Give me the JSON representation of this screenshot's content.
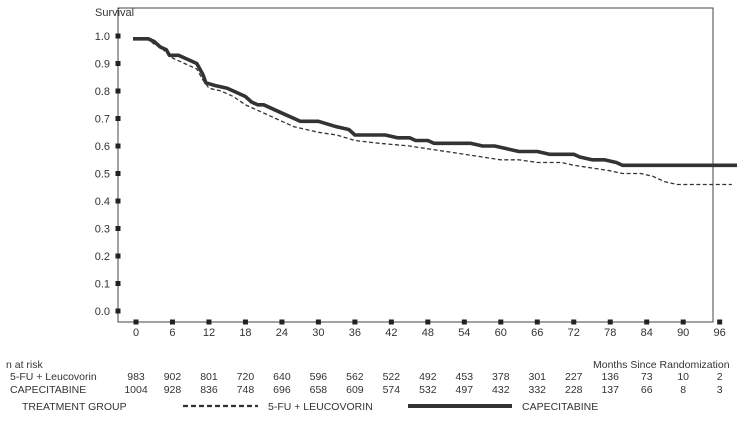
{
  "chart_data": {
    "type": "line",
    "ylabel": "Survival",
    "xlabel": "Months Since Randomization",
    "xlim": [
      -3,
      99
    ],
    "ylim": [
      0,
      1.0
    ],
    "x_ticks": [
      0,
      6,
      12,
      18,
      24,
      30,
      36,
      42,
      48,
      54,
      60,
      66,
      72,
      78,
      84,
      90,
      96
    ],
    "y_ticks": [
      0.0,
      0.1,
      0.2,
      0.3,
      0.4,
      0.5,
      0.6,
      0.7,
      0.8,
      0.9,
      1.0
    ],
    "grid": false,
    "series": [
      {
        "name": "CAPECITABINE",
        "style": "solid",
        "color": "#333333",
        "points": [
          [
            -0.5,
            0.99
          ],
          [
            2,
            0.99
          ],
          [
            3,
            0.98
          ],
          [
            4,
            0.96
          ],
          [
            5,
            0.95
          ],
          [
            5.5,
            0.93
          ],
          [
            7,
            0.93
          ],
          [
            8,
            0.92
          ],
          [
            9,
            0.91
          ],
          [
            10,
            0.9
          ],
          [
            11,
            0.86
          ],
          [
            11.5,
            0.83
          ],
          [
            13,
            0.82
          ],
          [
            15,
            0.81
          ],
          [
            16,
            0.8
          ],
          [
            17,
            0.79
          ],
          [
            18,
            0.78
          ],
          [
            19,
            0.76
          ],
          [
            20,
            0.75
          ],
          [
            21,
            0.75
          ],
          [
            23,
            0.73
          ],
          [
            25,
            0.71
          ],
          [
            26,
            0.7
          ],
          [
            27,
            0.69
          ],
          [
            30,
            0.69
          ],
          [
            33,
            0.67
          ],
          [
            35,
            0.66
          ],
          [
            36,
            0.64
          ],
          [
            41,
            0.64
          ],
          [
            43,
            0.63
          ],
          [
            45,
            0.63
          ],
          [
            46,
            0.62
          ],
          [
            48,
            0.62
          ],
          [
            49,
            0.61
          ],
          [
            51,
            0.61
          ],
          [
            55,
            0.61
          ],
          [
            57,
            0.6
          ],
          [
            59,
            0.6
          ],
          [
            61,
            0.59
          ],
          [
            63,
            0.58
          ],
          [
            66,
            0.58
          ],
          [
            68,
            0.57
          ],
          [
            72,
            0.57
          ],
          [
            73,
            0.56
          ],
          [
            75,
            0.55
          ],
          [
            77,
            0.55
          ],
          [
            79,
            0.54
          ],
          [
            80,
            0.53
          ],
          [
            100,
            0.53
          ]
        ]
      },
      {
        "name": "5-FU + LEUCOVORIN",
        "style": "dashed",
        "color": "#333333",
        "points": [
          [
            -0.5,
            0.99
          ],
          [
            2,
            0.99
          ],
          [
            3,
            0.97
          ],
          [
            4,
            0.96
          ],
          [
            5,
            0.94
          ],
          [
            6,
            0.92
          ],
          [
            8,
            0.9
          ],
          [
            10,
            0.88
          ],
          [
            11,
            0.84
          ],
          [
            12,
            0.81
          ],
          [
            14,
            0.8
          ],
          [
            16,
            0.78
          ],
          [
            18,
            0.75
          ],
          [
            20,
            0.73
          ],
          [
            22,
            0.71
          ],
          [
            24,
            0.69
          ],
          [
            26,
            0.67
          ],
          [
            28,
            0.66
          ],
          [
            30,
            0.65
          ],
          [
            33,
            0.64
          ],
          [
            36,
            0.62
          ],
          [
            40,
            0.61
          ],
          [
            45,
            0.6
          ],
          [
            48,
            0.59
          ],
          [
            51,
            0.58
          ],
          [
            54,
            0.57
          ],
          [
            57,
            0.56
          ],
          [
            60,
            0.55
          ],
          [
            63,
            0.55
          ],
          [
            66,
            0.54
          ],
          [
            70,
            0.54
          ],
          [
            72,
            0.53
          ],
          [
            75,
            0.52
          ],
          [
            78,
            0.51
          ],
          [
            80,
            0.5
          ],
          [
            83,
            0.5
          ],
          [
            85,
            0.49
          ],
          [
            87,
            0.47
          ],
          [
            89,
            0.46
          ],
          [
            92,
            0.46
          ],
          [
            98,
            0.46
          ]
        ]
      }
    ]
  },
  "at_risk": {
    "title": "n at risk",
    "rows": [
      {
        "label": "5-FU + Leucovorin",
        "values": [
          "983",
          "902",
          "801",
          "720",
          "640",
          "596",
          "562",
          "522",
          "492",
          "453",
          "378",
          "301",
          "227",
          "136",
          "73",
          "10",
          "2"
        ]
      },
      {
        "label": "CAPECITABINE",
        "values": [
          "1004",
          "928",
          "836",
          "748",
          "696",
          "658",
          "609",
          "574",
          "532",
          "497",
          "432",
          "332",
          "228",
          "137",
          "66",
          "8",
          "3"
        ]
      }
    ]
  },
  "legend": {
    "title": "TREATMENT GROUP",
    "items": [
      {
        "label": "5-FU + LEUCOVORIN",
        "style": "dashed"
      },
      {
        "label": "CAPECITABINE",
        "style": "solid"
      }
    ]
  }
}
